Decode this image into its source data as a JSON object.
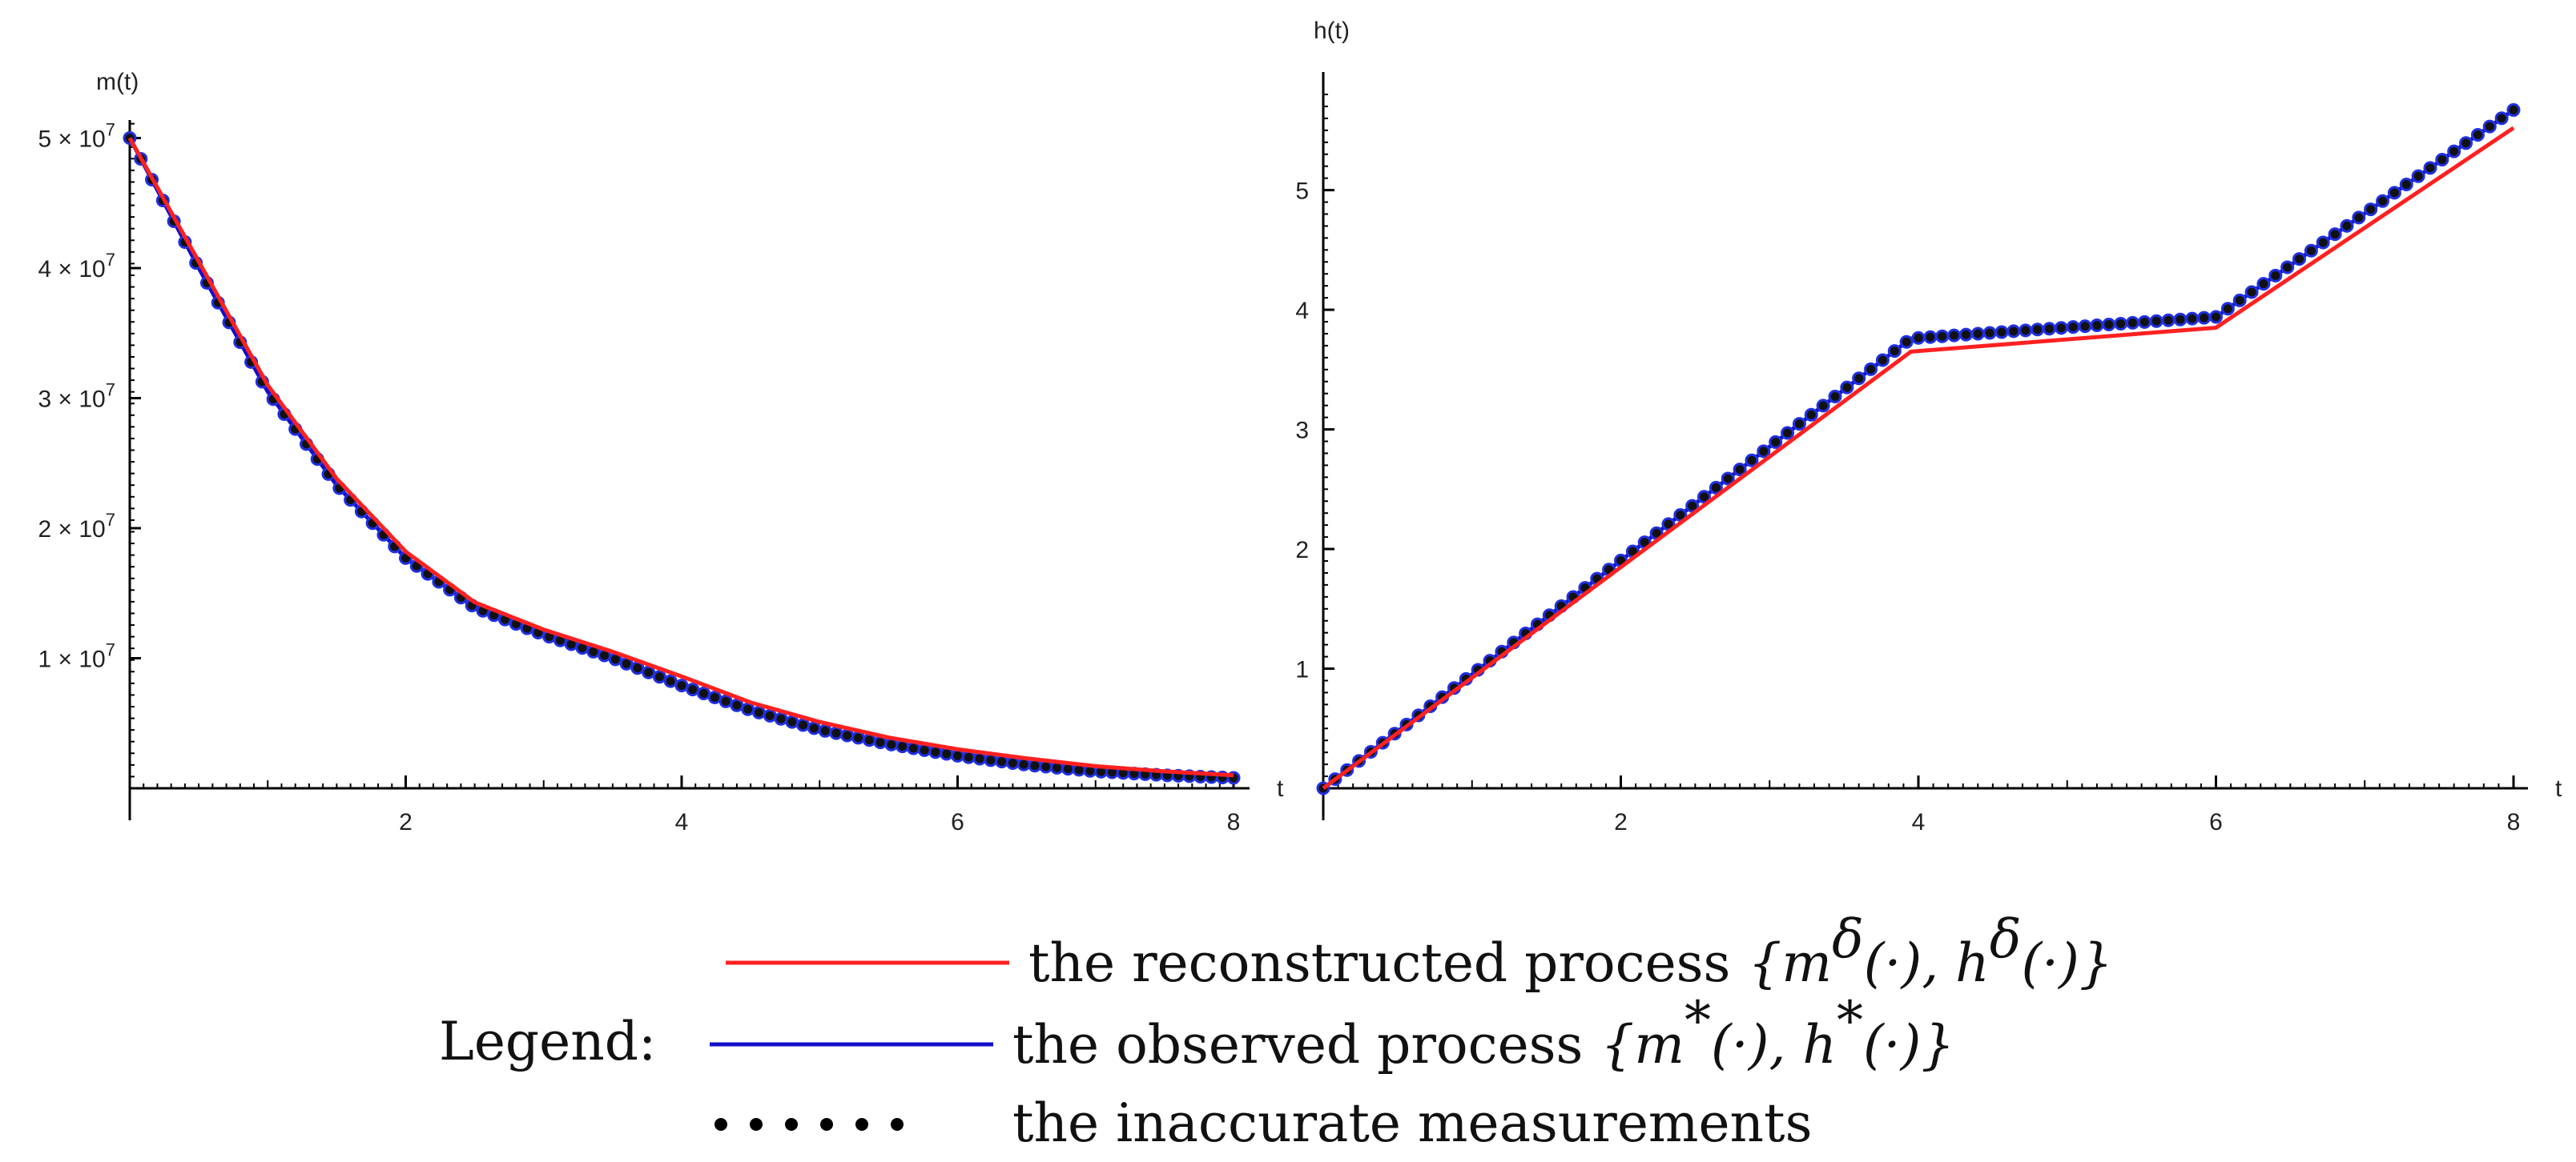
{
  "chart_data": [
    {
      "type": "line",
      "ylabel": "m(t)",
      "xlabel": "t",
      "xlim": [
        0,
        8
      ],
      "ylim": [
        0,
        52000000
      ],
      "x_ticks": [
        2,
        4,
        6,
        8
      ],
      "y_ticks": [
        {
          "value": 10000000,
          "mantissa": "1 × 10",
          "exp": "7"
        },
        {
          "value": 20000000,
          "mantissa": "2 × 10",
          "exp": "7"
        },
        {
          "value": 30000000,
          "mantissa": "3 × 10",
          "exp": "7"
        },
        {
          "value": 40000000,
          "mantissa": "4 × 10",
          "exp": "7"
        },
        {
          "value": 50000000,
          "mantissa": "5 × 10",
          "exp": "7"
        }
      ],
      "grid": false,
      "series": [
        {
          "name": "reconstructed",
          "color": "#ff2020",
          "x": [
            0,
            0.5,
            1,
            1.5,
            2,
            2.5,
            3,
            3.5,
            4,
            4.5,
            5,
            5.5,
            6,
            6.5,
            7,
            7.5,
            8
          ],
          "y": [
            50000000,
            40500000,
            31000000,
            23800000,
            18200000,
            14300000,
            12200000,
            10500000,
            8600000,
            6600000,
            5100000,
            3900000,
            3000000,
            2300000,
            1700000,
            1300000,
            1000000
          ]
        },
        {
          "name": "observed",
          "color": "#1010c8",
          "x": [
            0,
            0.5,
            1,
            1.5,
            2,
            2.5,
            3,
            3.5,
            4,
            4.5,
            5,
            5.5,
            6,
            6.5,
            7,
            7.5,
            8
          ],
          "y": [
            50000000,
            40000000,
            30500000,
            23300000,
            17700000,
            13900000,
            11800000,
            10000000,
            7900000,
            6000000,
            4500000,
            3400000,
            2500000,
            1800000,
            1300000,
            1000000,
            800000
          ]
        }
      ]
    },
    {
      "type": "line",
      "ylabel": "h(t)",
      "xlabel": "t",
      "xlim": [
        0,
        8
      ],
      "ylim": [
        0,
        5.8
      ],
      "x_ticks": [
        2,
        4,
        6,
        8
      ],
      "y_ticks": [
        1,
        2,
        3,
        4,
        5
      ],
      "grid": false,
      "series": [
        {
          "name": "reconstructed",
          "color": "#ff2020",
          "x": [
            0,
            3.95,
            6,
            8
          ],
          "y": [
            0,
            3.65,
            3.85,
            5.52
          ]
        },
        {
          "name": "observed",
          "color": "#1010c8",
          "x": [
            0,
            3.95,
            6,
            8
          ],
          "y": [
            0,
            3.76,
            3.94,
            5.67
          ]
        }
      ]
    }
  ],
  "legend": {
    "label": "Legend:",
    "entries": [
      {
        "kind": "line",
        "color": "#ff2020",
        "text": "the reconstructed process",
        "math": "{m",
        "sup1": "δ",
        "mid": "(·), h",
        "sup2": "δ",
        "end": "(·)}"
      },
      {
        "kind": "line",
        "color": "#1010c8",
        "text": "the observed process",
        "math": "{m",
        "sup1": "*",
        "mid": "(·), h",
        "sup2": "*",
        "end": "(·)}"
      },
      {
        "kind": "dots",
        "color": "#000000",
        "text": "the inaccurate measurements"
      }
    ]
  }
}
